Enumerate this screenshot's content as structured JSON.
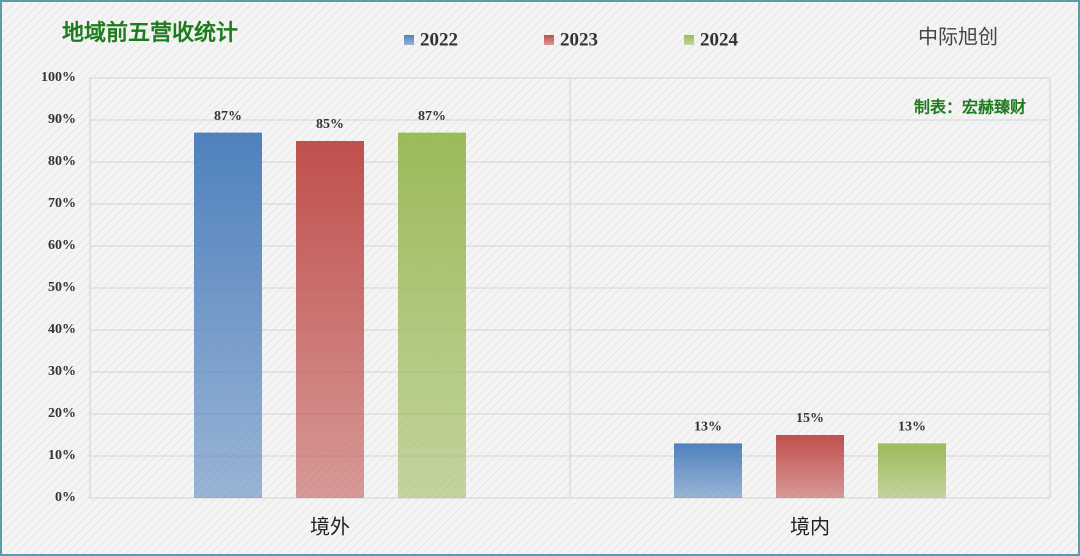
{
  "chart_data": {
    "type": "bar",
    "title": "地域前五营收统计",
    "annotations": [
      "中际旭创",
      "制表：宏赫臻财"
    ],
    "categories": [
      "境外",
      "境内"
    ],
    "series": [
      {
        "name": "2022",
        "color": "#4f81bd",
        "values": [
          87,
          13
        ],
        "value_labels": [
          "87%",
          "13%"
        ]
      },
      {
        "name": "2023",
        "color": "#c0504d",
        "values": [
          85,
          15
        ],
        "value_labels": [
          "85%",
          "15%"
        ]
      },
      {
        "name": "2024",
        "color": "#9bbb59",
        "values": [
          87,
          13
        ],
        "value_labels": [
          "87%",
          "13%"
        ]
      }
    ],
    "ylim": [
      0,
      100
    ],
    "yticks": [
      {
        "value": 0,
        "label": "0%"
      },
      {
        "value": 10,
        "label": "10%"
      },
      {
        "value": 20,
        "label": "20%"
      },
      {
        "value": 30,
        "label": "30%"
      },
      {
        "value": 40,
        "label": "40%"
      },
      {
        "value": 50,
        "label": "50%"
      },
      {
        "value": 60,
        "label": "60%"
      },
      {
        "value": 70,
        "label": "70%"
      },
      {
        "value": 80,
        "label": "80%"
      },
      {
        "value": 90,
        "label": "90%"
      },
      {
        "value": 100,
        "label": "100%"
      }
    ],
    "grid": true
  }
}
